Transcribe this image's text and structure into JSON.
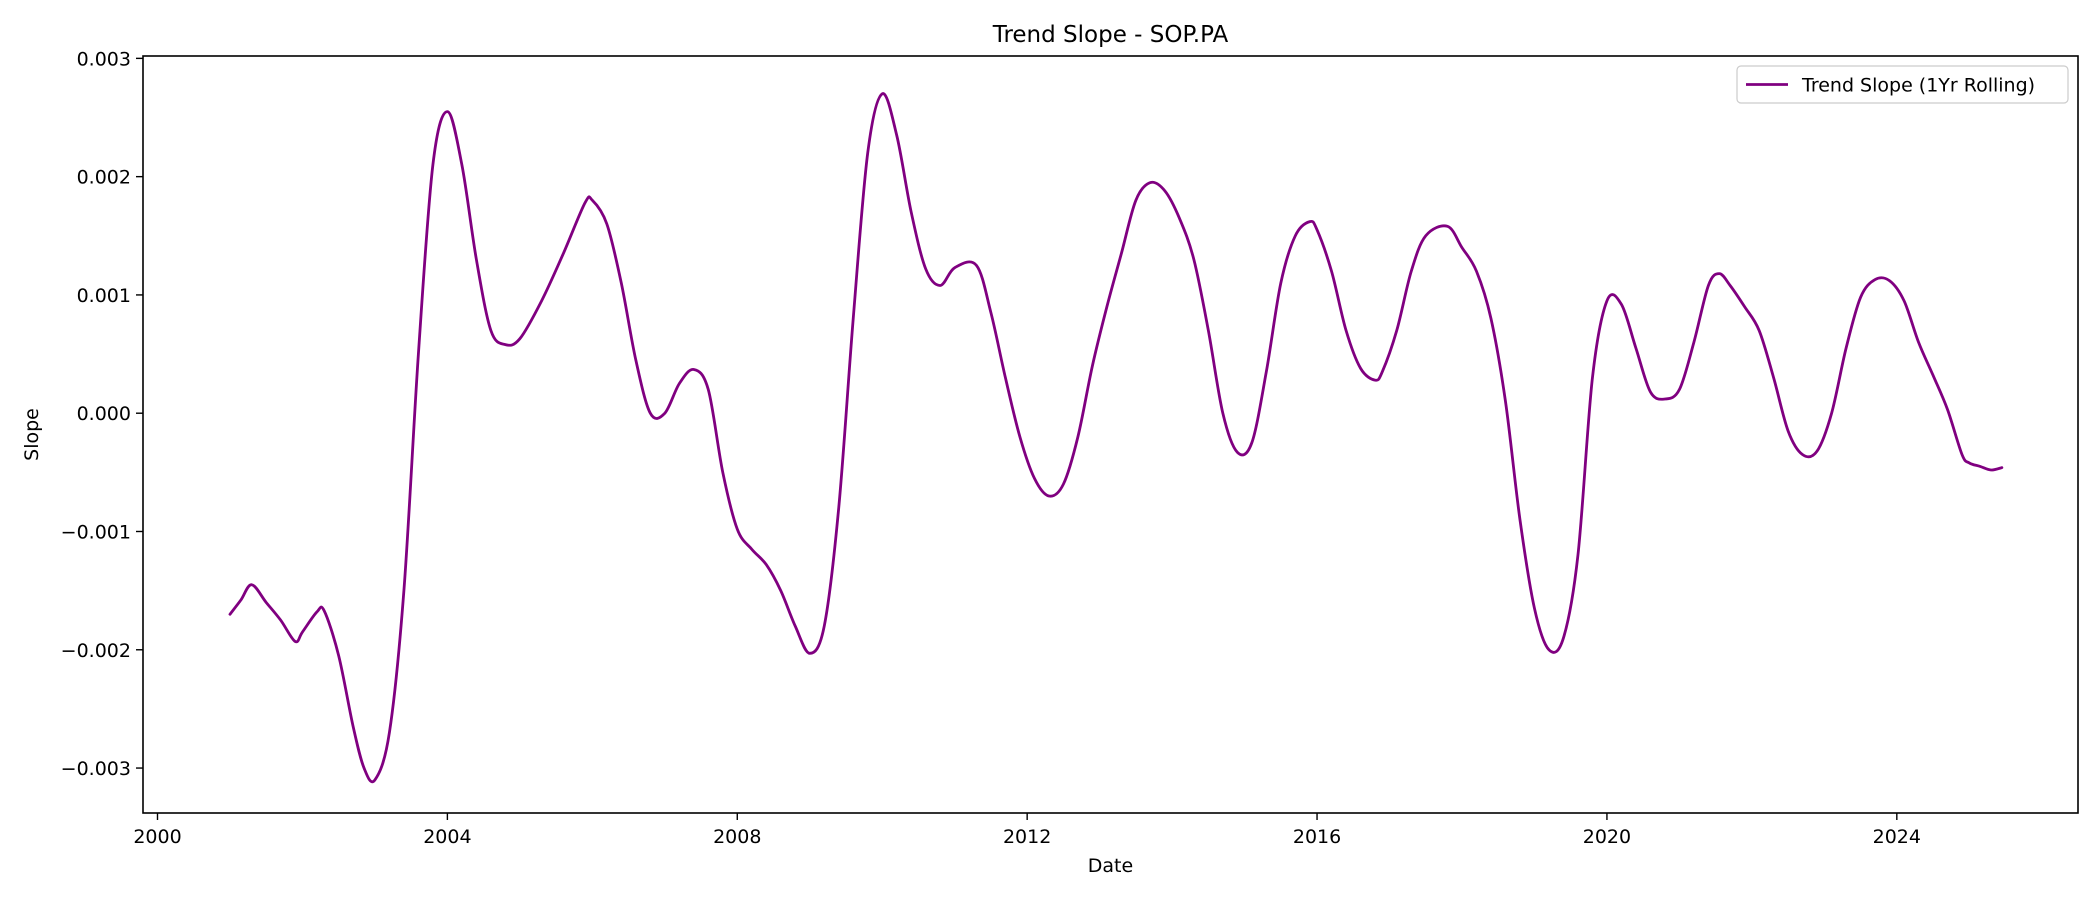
{
  "chart_data": {
    "type": "line",
    "title": "Trend Slope - SOP.PA",
    "xlabel": "Date",
    "ylabel": "Slope",
    "xlim": [
      1999.8,
      2026.5
    ],
    "ylim": [
      -0.00338,
      0.00302
    ],
    "x_ticks": [
      2000,
      2004,
      2008,
      2012,
      2016,
      2020,
      2024
    ],
    "x_tick_labels": [
      "2000",
      "2004",
      "2008",
      "2012",
      "2016",
      "2020",
      "2024"
    ],
    "y_ticks": [
      0.003,
      0.002,
      0.001,
      0.0,
      -0.001,
      -0.002,
      -0.003
    ],
    "y_tick_labels": [
      "0.003",
      "0.002",
      "0.001",
      "0.000",
      "−0.001",
      "−0.002",
      "−0.003"
    ],
    "grid": false,
    "legend_position": "top-right",
    "series": [
      {
        "name": "Trend Slope (1Yr Rolling)",
        "color": "#800080",
        "x": [
          2001.0,
          2001.15,
          2001.3,
          2001.5,
          2001.7,
          2001.9,
          2002.0,
          2002.2,
          2002.3,
          2002.5,
          2002.7,
          2002.85,
          2003.0,
          2003.2,
          2003.4,
          2003.6,
          2003.8,
          2004.0,
          2004.2,
          2004.4,
          2004.6,
          2004.8,
          2005.0,
          2005.3,
          2005.6,
          2005.9,
          2006.0,
          2006.2,
          2006.4,
          2006.6,
          2006.8,
          2007.0,
          2007.2,
          2007.4,
          2007.6,
          2007.8,
          2008.0,
          2008.2,
          2008.4,
          2008.6,
          2008.8,
          2009.0,
          2009.2,
          2009.4,
          2009.6,
          2009.8,
          2010.0,
          2010.2,
          2010.4,
          2010.6,
          2010.8,
          2011.0,
          2011.3,
          2011.5,
          2011.7,
          2011.9,
          2012.1,
          2012.3,
          2012.5,
          2012.7,
          2012.9,
          2013.1,
          2013.3,
          2013.5,
          2013.7,
          2013.9,
          2014.1,
          2014.3,
          2014.5,
          2014.7,
          2014.9,
          2015.1,
          2015.3,
          2015.5,
          2015.7,
          2015.9,
          2016.0,
          2016.2,
          2016.4,
          2016.6,
          2016.8,
          2016.9,
          2017.1,
          2017.3,
          2017.5,
          2017.8,
          2018.0,
          2018.2,
          2018.4,
          2018.6,
          2018.8,
          2019.0,
          2019.2,
          2019.4,
          2019.6,
          2019.8,
          2020.0,
          2020.2,
          2020.4,
          2020.6,
          2020.8,
          2021.0,
          2021.2,
          2021.4,
          2021.55,
          2021.7,
          2021.9,
          2022.1,
          2022.3,
          2022.5,
          2022.7,
          2022.9,
          2023.1,
          2023.3,
          2023.5,
          2023.7,
          2023.9,
          2024.1,
          2024.3,
          2024.5,
          2024.7,
          2024.9,
          2025.0,
          2025.15,
          2025.3,
          2025.45
        ],
        "y": [
          -0.0017,
          -0.00158,
          -0.00145,
          -0.0016,
          -0.00175,
          -0.00193,
          -0.00185,
          -0.00168,
          -0.00167,
          -0.00205,
          -0.00265,
          -0.003,
          -0.0031,
          -0.0027,
          -0.0015,
          0.0005,
          0.0021,
          0.00255,
          0.0021,
          0.0013,
          0.0007,
          0.00058,
          0.00063,
          0.00095,
          0.00135,
          0.00178,
          0.0018,
          0.0016,
          0.0011,
          0.00045,
          0.0,
          0.0,
          0.00025,
          0.00037,
          0.0002,
          -0.0005,
          -0.00098,
          -0.00115,
          -0.00128,
          -0.0015,
          -0.0018,
          -0.00203,
          -0.0018,
          -0.0008,
          0.0008,
          0.0022,
          0.0027,
          0.00235,
          0.0017,
          0.00122,
          0.00108,
          0.00123,
          0.00125,
          0.00085,
          0.0003,
          -0.0002,
          -0.00055,
          -0.0007,
          -0.0006,
          -0.0002,
          0.0004,
          0.0009,
          0.00135,
          0.0018,
          0.00195,
          0.00188,
          0.00165,
          0.0013,
          0.0007,
          0.0,
          -0.00033,
          -0.00025,
          0.00035,
          0.0011,
          0.0015,
          0.00162,
          0.00155,
          0.0012,
          0.0007,
          0.00038,
          0.00028,
          0.00035,
          0.0007,
          0.0012,
          0.0015,
          0.00158,
          0.0014,
          0.0012,
          0.0008,
          0.0001,
          -0.0009,
          -0.00165,
          -0.002,
          -0.0019,
          -0.0012,
          0.0003,
          0.00095,
          0.00092,
          0.00055,
          0.00018,
          0.00012,
          0.0002,
          0.0006,
          0.00108,
          0.00118,
          0.00108,
          0.0009,
          0.0007,
          0.0003,
          -0.00015,
          -0.00035,
          -0.00032,
          0.0,
          0.00055,
          0.00098,
          0.00113,
          0.00112,
          0.00095,
          0.0006,
          0.00032,
          3e-05,
          -0.00035,
          -0.00042,
          -0.00045,
          -0.00048,
          -0.00046
        ]
      }
    ]
  }
}
